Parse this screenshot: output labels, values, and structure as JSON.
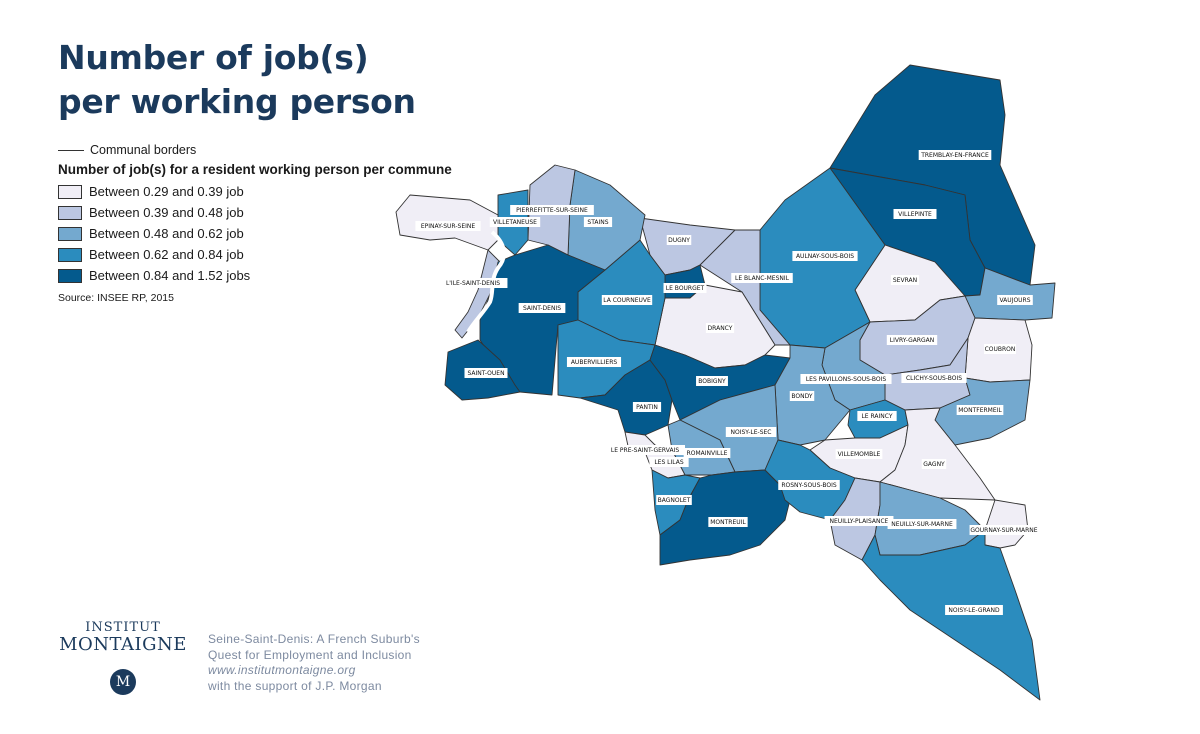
{
  "title": {
    "line1": "Number of job(s)",
    "line2": "per working person"
  },
  "legend": {
    "border_label": "Communal borders",
    "subtitle": "Number of job(s) for a resident working person per commune",
    "items": [
      {
        "label": "Between 0.29 and 0.39 job",
        "color": "#f0eef6"
      },
      {
        "label": "Between 0.39 and 0.48 job",
        "color": "#bcc7e2"
      },
      {
        "label": "Between 0.48 and 0.62 job",
        "color": "#74a9cf"
      },
      {
        "label": "Between 0.62 and 0.84 job",
        "color": "#2b8cbe"
      },
      {
        "label": "Between 0.84 and 1.52 jobs",
        "color": "#045a8d"
      }
    ],
    "source": "Source: INSEE RP, 2015"
  },
  "communes": [
    {
      "name": "TREMBLAY-EN-FRANCE",
      "class": 4
    },
    {
      "name": "VILLEPINTE",
      "class": 4
    },
    {
      "name": "SEVRAN",
      "class": 0
    },
    {
      "name": "VAUJOURS",
      "class": 2
    },
    {
      "name": "AULNAY-SOUS-BOIS",
      "class": 3
    },
    {
      "name": "LE BLANC-MESNIL",
      "class": 1
    },
    {
      "name": "DUGNY",
      "class": 1
    },
    {
      "name": "LE BOURGET",
      "class": 4
    },
    {
      "name": "DRANCY",
      "class": 0
    },
    {
      "name": "LA COURNEUVE",
      "class": 3
    },
    {
      "name": "STAINS",
      "class": 2
    },
    {
      "name": "PIERREFITTE-SUR-SEINE",
      "class": 1
    },
    {
      "name": "VILLETANEUSE",
      "class": 3
    },
    {
      "name": "EPINAY-SUR-SEINE",
      "class": 0
    },
    {
      "name": "L'ILE-SAINT-DENIS",
      "class": 1
    },
    {
      "name": "SAINT-DENIS",
      "class": 4
    },
    {
      "name": "SAINT-OUEN",
      "class": 4
    },
    {
      "name": "AUBERVILLIERS",
      "class": 3
    },
    {
      "name": "PANTIN",
      "class": 4
    },
    {
      "name": "BOBIGNY",
      "class": 4
    },
    {
      "name": "LIVRY-GARGAN",
      "class": 1
    },
    {
      "name": "COUBRON",
      "class": 0
    },
    {
      "name": "CLICHY-SOUS-BOIS",
      "class": 1
    },
    {
      "name": "LES PAVILLONS-SOUS-BOIS",
      "class": 2
    },
    {
      "name": "BONDY",
      "class": 2
    },
    {
      "name": "MONTFERMEIL",
      "class": 2
    },
    {
      "name": "LE RAINCY",
      "class": 3
    },
    {
      "name": "VILLEMOMBLE",
      "class": 0
    },
    {
      "name": "GAGNY",
      "class": 0
    },
    {
      "name": "NOISY-LE-SEC",
      "class": 2
    },
    {
      "name": "ROMAINVILLE",
      "class": 2
    },
    {
      "name": "LE PRE-SAINT-GERVAIS",
      "class": 0
    },
    {
      "name": "LES LILAS",
      "class": 0
    },
    {
      "name": "BAGNOLET",
      "class": 3
    },
    {
      "name": "MONTREUIL",
      "class": 4
    },
    {
      "name": "ROSNY-SOUS-BOIS",
      "class": 3
    },
    {
      "name": "NEUILLY-PLAISANCE",
      "class": 1
    },
    {
      "name": "NEUILLY-SUR-MARNE",
      "class": 2
    },
    {
      "name": "GOURNAY-SUR-MARNE",
      "class": 0
    },
    {
      "name": "NOISY-LE-GRAND",
      "class": 3
    }
  ],
  "footer": {
    "logo_line1": "INSTITUT",
    "logo_line2": "MONTAIGNE",
    "logo_mark": "M",
    "credit_line1": "Seine-Saint-Denis: A French Suburb's",
    "credit_line2": "Quest for Employment and Inclusion",
    "credit_web": "www.institutmontaigne.org",
    "credit_line4": "with the support of J.P. Morgan"
  }
}
